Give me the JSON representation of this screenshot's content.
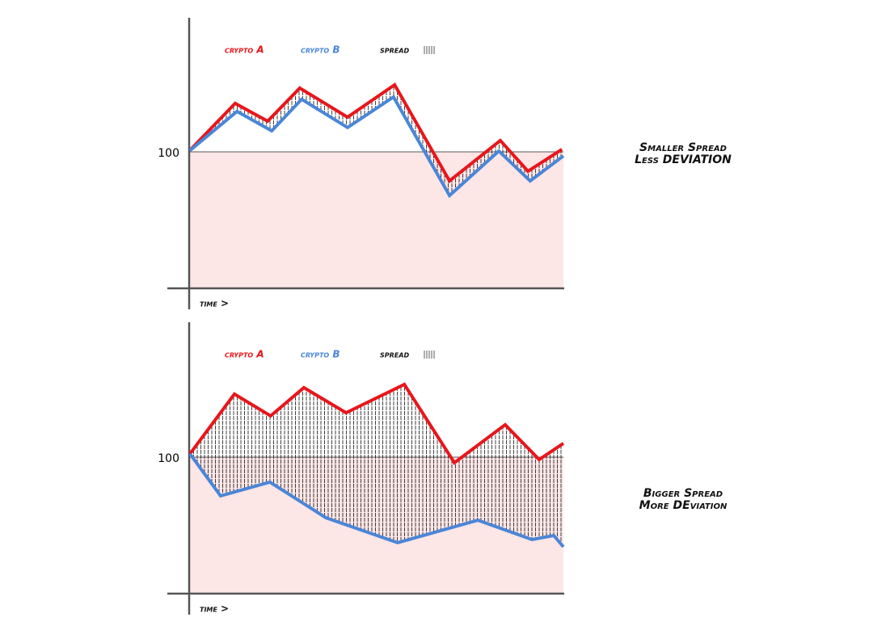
{
  "chart_data": [
    {
      "type": "line",
      "xlabel": "time >",
      "spread_label": "spread",
      "annotation": [
        "Smaller Spread",
        "Less DEVIATION"
      ],
      "xlim": [
        0,
        100
      ],
      "ylim": [
        0,
        200
      ],
      "yticks": [
        100
      ],
      "series": [
        {
          "name": "crypto A",
          "color": "#e8161b",
          "x": [
            0,
            12.1,
            20.8,
            29.4,
            42.2,
            54.8,
            69.5,
            83.1,
            90.5,
            99.6
          ],
          "values": [
            101.2,
            135.5,
            122.5,
            146.7,
            125.4,
            149.1,
            78.7,
            108.3,
            85.8,
            101.8
          ]
        },
        {
          "name": "crypto B",
          "color": "#4a86d8",
          "x": [
            0,
            12.6,
            21.9,
            29.9,
            42.2,
            54.5,
            69.5,
            82.7,
            91.1,
            100
          ],
          "values": [
            101,
            129.6,
            115.4,
            138.5,
            117.8,
            140.2,
            68,
            100.6,
            78.7,
            97
          ]
        }
      ]
    },
    {
      "type": "line",
      "xlabel": "time >",
      "spread_label": "spread",
      "annotation": [
        "Bigger Spread",
        "More DEviation"
      ],
      "xlim": [
        0,
        100
      ],
      "ylim": [
        0,
        200
      ],
      "yticks": [
        100
      ],
      "series": [
        {
          "name": "crypto A",
          "color": "#e8161b",
          "x": [
            0,
            11.9,
            21.6,
            30.5,
            41.8,
            57.4,
            70.8,
            84.4,
            93.5,
            100
          ],
          "values": [
            102.4,
            146.2,
            130.2,
            150.9,
            132.5,
            153.3,
            95.9,
            123.7,
            98.2,
            110.1
          ]
        },
        {
          "name": "crypto B",
          "color": "#4a86d8",
          "x": [
            0,
            8.2,
            21.4,
            36.4,
            55.6,
            77.1,
            91.6,
            97.4,
            100
          ],
          "values": [
            102.4,
            71.6,
            81.7,
            55.6,
            37.3,
            53.8,
            39.6,
            42.6,
            34.3
          ]
        }
      ]
    }
  ]
}
